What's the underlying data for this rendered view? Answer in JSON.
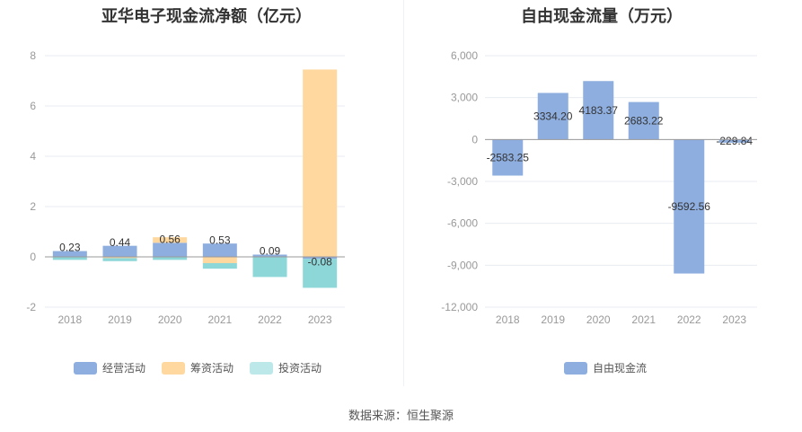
{
  "source_label": "数据来源：恒生聚源",
  "colors": {
    "operating": "#8eaedf",
    "financing": "#fed89e",
    "investing": "#8dd7d9",
    "fcf": "#8eaedf",
    "axis_text": "#999999",
    "grid": "#e8ebf0",
    "zero_line": "#999999"
  },
  "chart_data": [
    {
      "type": "bar",
      "stacked": true,
      "title": "亚华电子现金流净额（亿元）",
      "categories": [
        "2018",
        "2019",
        "2020",
        "2021",
        "2022",
        "2023"
      ],
      "ylim": [
        -2,
        8
      ],
      "yticks": [
        -2,
        0,
        2,
        4,
        6,
        8
      ],
      "grid": true,
      "legend_position": "bottom",
      "series": [
        {
          "name": "经营活动",
          "values": [
            0.23,
            0.44,
            0.56,
            0.53,
            0.09,
            -0.08
          ]
        },
        {
          "name": "筹资活动",
          "values": [
            0.0,
            -0.05,
            0.22,
            -0.25,
            0.0,
            7.45
          ]
        },
        {
          "name": "投资活动",
          "values": [
            -0.12,
            -0.12,
            -0.12,
            -0.22,
            -0.8,
            -1.15
          ]
        }
      ],
      "data_labels": [
        "0.23",
        "0.44",
        "0.56",
        "0.53",
        "0.09",
        "-0.08"
      ]
    },
    {
      "type": "bar",
      "title": "自由现金流量（万元）",
      "categories": [
        "2018",
        "2019",
        "2020",
        "2021",
        "2022",
        "2023"
      ],
      "ylim": [
        -12000,
        6000
      ],
      "yticks": [
        -12000,
        -9000,
        -6000,
        -3000,
        0,
        3000,
        6000
      ],
      "ytick_labels": [
        "-12,000",
        "-9,000",
        "-6,000",
        "-3,000",
        "0",
        "3,000",
        "6,000"
      ],
      "grid": true,
      "legend_position": "bottom",
      "series": [
        {
          "name": "自由现金流",
          "values": [
            -2583.25,
            3334.2,
            4183.37,
            2683.22,
            -9592.56,
            -229.84
          ]
        }
      ],
      "data_labels": [
        "-2583.25",
        "3334.20",
        "4183.37",
        "2683.22",
        "-9592.56",
        "-229.84"
      ]
    }
  ]
}
